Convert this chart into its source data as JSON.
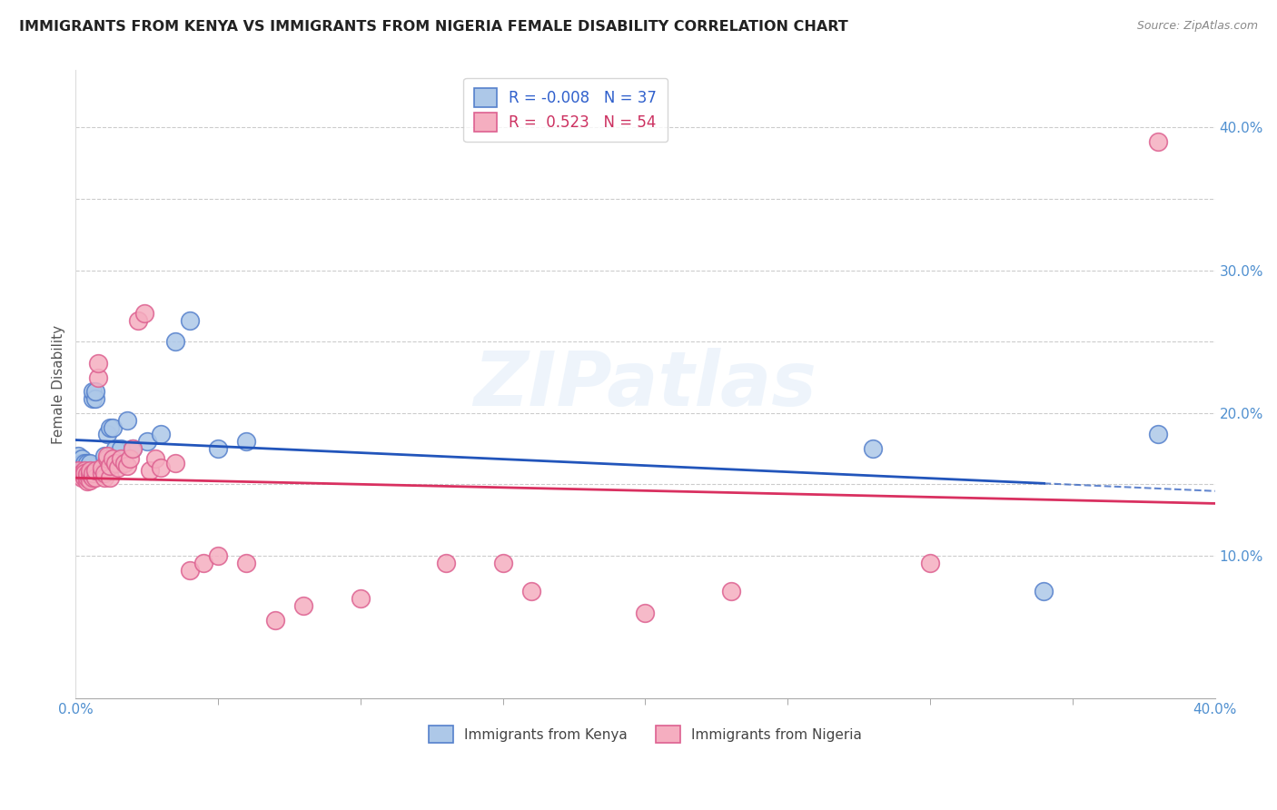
{
  "title": "IMMIGRANTS FROM KENYA VS IMMIGRANTS FROM NIGERIA FEMALE DISABILITY CORRELATION CHART",
  "source": "Source: ZipAtlas.com",
  "ylabel": "Female Disability",
  "legend_kenya": "Immigrants from Kenya",
  "legend_nigeria": "Immigrants from Nigeria",
  "kenya_R": -0.008,
  "kenya_N": 37,
  "nigeria_R": 0.523,
  "nigeria_N": 54,
  "kenya_color": "#adc8e8",
  "nigeria_color": "#f5aec0",
  "kenya_line_color": "#2255bb",
  "nigeria_line_color": "#d93060",
  "kenya_edge_color": "#5580cc",
  "nigeria_edge_color": "#dd6090",
  "xlim": [
    0.0,
    0.4
  ],
  "ylim": [
    0.0,
    0.44
  ],
  "grid_color": "#cccccc",
  "watermark": "ZIPatlas",
  "kenya_x": [
    0.001,
    0.002,
    0.002,
    0.003,
    0.003,
    0.003,
    0.004,
    0.004,
    0.004,
    0.004,
    0.005,
    0.005,
    0.005,
    0.006,
    0.006,
    0.007,
    0.007,
    0.008,
    0.009,
    0.01,
    0.011,
    0.012,
    0.013,
    0.014,
    0.015,
    0.016,
    0.018,
    0.02,
    0.025,
    0.03,
    0.035,
    0.04,
    0.05,
    0.06,
    0.28,
    0.34,
    0.38
  ],
  "kenya_y": [
    0.17,
    0.165,
    0.168,
    0.16,
    0.163,
    0.165,
    0.155,
    0.158,
    0.162,
    0.165,
    0.155,
    0.16,
    0.165,
    0.21,
    0.215,
    0.21,
    0.215,
    0.16,
    0.16,
    0.17,
    0.185,
    0.19,
    0.19,
    0.175,
    0.165,
    0.175,
    0.195,
    0.175,
    0.18,
    0.185,
    0.25,
    0.265,
    0.175,
    0.18,
    0.175,
    0.075,
    0.185
  ],
  "nigeria_x": [
    0.001,
    0.002,
    0.002,
    0.003,
    0.003,
    0.003,
    0.004,
    0.004,
    0.004,
    0.005,
    0.005,
    0.005,
    0.006,
    0.006,
    0.007,
    0.007,
    0.008,
    0.008,
    0.009,
    0.009,
    0.01,
    0.01,
    0.011,
    0.011,
    0.012,
    0.012,
    0.013,
    0.014,
    0.015,
    0.016,
    0.017,
    0.018,
    0.019,
    0.02,
    0.022,
    0.024,
    0.026,
    0.028,
    0.03,
    0.035,
    0.04,
    0.045,
    0.05,
    0.06,
    0.07,
    0.08,
    0.1,
    0.13,
    0.15,
    0.16,
    0.2,
    0.23,
    0.3,
    0.38
  ],
  "nigeria_y": [
    0.16,
    0.155,
    0.158,
    0.16,
    0.155,
    0.158,
    0.152,
    0.155,
    0.157,
    0.153,
    0.157,
    0.16,
    0.155,
    0.158,
    0.155,
    0.16,
    0.225,
    0.235,
    0.158,
    0.162,
    0.155,
    0.158,
    0.168,
    0.17,
    0.155,
    0.163,
    0.168,
    0.165,
    0.162,
    0.168,
    0.165,
    0.163,
    0.168,
    0.175,
    0.265,
    0.27,
    0.16,
    0.168,
    0.162,
    0.165,
    0.09,
    0.095,
    0.1,
    0.095,
    0.055,
    0.065,
    0.07,
    0.095,
    0.095,
    0.075,
    0.06,
    0.075,
    0.095,
    0.39
  ]
}
